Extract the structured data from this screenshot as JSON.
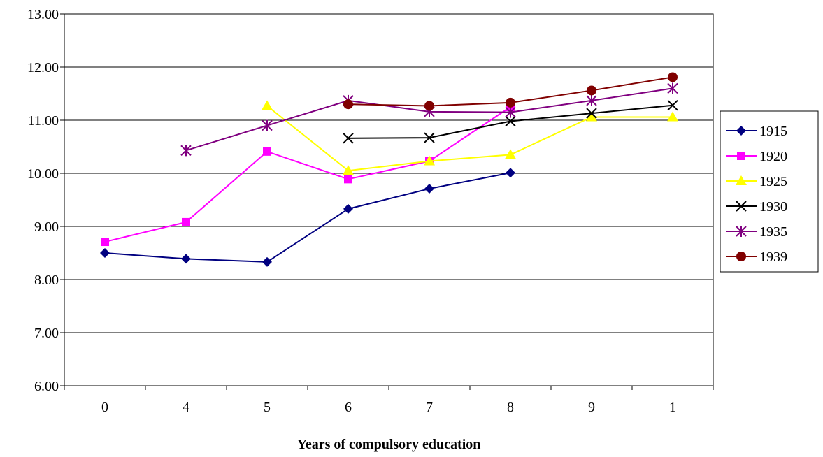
{
  "chart_data": {
    "type": "line",
    "title": "",
    "xlabel": "Years of compulsory education",
    "ylabel": "",
    "categories": [
      "0",
      "4",
      "5",
      "6",
      "7",
      "8",
      "9",
      "1"
    ],
    "ylim": [
      6.0,
      13.0
    ],
    "yticks": [
      "6.00",
      "7.00",
      "8.00",
      "9.00",
      "10.00",
      "11.00",
      "12.00",
      "13.00"
    ],
    "grid": "horizontal",
    "legend": "right",
    "series": [
      {
        "name": "1915",
        "color": "#000080",
        "marker": "diamond",
        "values": [
          8.5,
          8.39,
          8.33,
          9.33,
          9.71,
          10.01,
          null,
          null
        ]
      },
      {
        "name": "1920",
        "color": "#FF00FF",
        "marker": "square",
        "values": [
          8.71,
          9.08,
          10.41,
          9.89,
          10.23,
          11.25,
          null,
          null
        ]
      },
      {
        "name": "1925",
        "color": "#FFFF00",
        "marker": "triangle",
        "values": [
          null,
          null,
          11.27,
          10.05,
          10.23,
          10.35,
          11.06,
          11.06
        ]
      },
      {
        "name": "1930",
        "color": "#000000",
        "marker": "x",
        "values": [
          null,
          null,
          null,
          10.66,
          10.67,
          10.98,
          11.13,
          11.28
        ]
      },
      {
        "name": "1935",
        "color": "#800080",
        "marker": "star",
        "values": [
          null,
          10.43,
          10.9,
          11.37,
          11.16,
          11.15,
          11.37,
          11.6
        ]
      },
      {
        "name": "1939",
        "color": "#800000",
        "marker": "circle",
        "values": [
          null,
          null,
          null,
          11.3,
          11.27,
          11.33,
          11.56,
          11.81
        ]
      }
    ]
  }
}
